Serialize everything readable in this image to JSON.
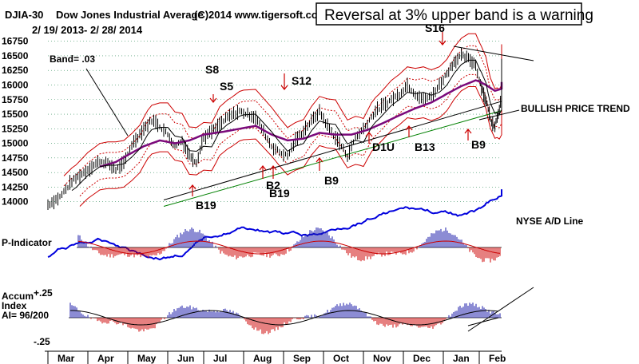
{
  "header": {
    "symbol": "DJIA-30",
    "name": "Dow Jones Industrial Average",
    "source": "(C)2014 www.tigersoft.com",
    "date_range": "2/ 19/ 2013- 2/ 28/ 2014"
  },
  "callout": "Reversal at 3% upper band is a warning",
  "band_label": "Band= .03",
  "trend_label": "BULLISH PRICE TREND",
  "ad_label": "NYSE A/D Line",
  "p_indicator_label": "P-Indicator",
  "accum": {
    "line1": "Accum",
    "line2": "Index",
    "line3": "AI= 96/200",
    "top_tick": "+.25",
    "bottom_tick": "-.25"
  },
  "colors": {
    "price": "#000000",
    "band": "#cc0000",
    "ma_long": "#7b0a7b",
    "ma_short": "#000000",
    "ad_line": "#0000dd",
    "trend_green": "#008000",
    "grid": "#2e8b57",
    "pos_hist": "#1a1aaa",
    "neg_hist": "#cc0000",
    "signal": "#cc0000"
  },
  "chart_data": {
    "type": "line",
    "ylim": [
      13900,
      16800
    ],
    "y_ticks": [
      14000,
      14250,
      14500,
      14750,
      15000,
      15250,
      15500,
      15750,
      16000,
      16250,
      16500,
      16750
    ],
    "months": [
      "Mar",
      "Apr",
      "May",
      "Jun",
      "Jul",
      "Aug",
      "Sep",
      "Oct",
      "Nov",
      "Dec",
      "Jan",
      "Feb"
    ],
    "series": [
      {
        "values": [
          [
            0,
            13950
          ],
          [
            0.3,
            14080
          ],
          [
            0.6,
            14350
          ],
          [
            1,
            14550
          ],
          [
            1.3,
            14700
          ],
          [
            1.5,
            14650
          ],
          [
            1.7,
            14550
          ],
          [
            1.9,
            14650
          ],
          [
            2.1,
            14980
          ],
          [
            2.4,
            15250
          ],
          [
            2.6,
            15400
          ],
          [
            2.8,
            15300
          ],
          [
            3,
            15150
          ],
          [
            3.2,
            14950
          ],
          [
            3.4,
            15050
          ],
          [
            3.6,
            14800
          ],
          [
            3.8,
            14680
          ],
          [
            4,
            15100
          ],
          [
            4.3,
            15250
          ],
          [
            4.6,
            15450
          ],
          [
            4.9,
            15550
          ],
          [
            5.1,
            15500
          ],
          [
            5.3,
            15450
          ],
          [
            5.5,
            15200
          ],
          [
            5.7,
            14950
          ],
          [
            5.9,
            14850
          ],
          [
            6.1,
            14780
          ],
          [
            6.3,
            15050
          ],
          [
            6.6,
            15300
          ],
          [
            6.9,
            15550
          ],
          [
            7.1,
            15300
          ],
          [
            7.3,
            15100
          ],
          [
            7.5,
            14900
          ],
          [
            7.6,
            14780
          ],
          [
            7.8,
            15100
          ],
          [
            8,
            15250
          ],
          [
            8.3,
            15550
          ],
          [
            8.6,
            15700
          ],
          [
            8.9,
            15850
          ],
          [
            9.1,
            16000
          ],
          [
            9.3,
            15850
          ],
          [
            9.5,
            15750
          ],
          [
            9.7,
            15800
          ],
          [
            9.9,
            16000
          ],
          [
            10.1,
            16200
          ],
          [
            10.3,
            16400
          ],
          [
            10.5,
            16500
          ],
          [
            10.7,
            16450
          ],
          [
            10.9,
            16350
          ],
          [
            11,
            16100
          ],
          [
            11.2,
            15850
          ],
          [
            11.4,
            15600
          ],
          [
            11.5,
            15400
          ],
          [
            11.7,
            15300
          ],
          [
            11.9,
            15600
          ],
          [
            12,
            15800
          ],
          [
            12.2,
            16000
          ],
          [
            12.4,
            16150
          ],
          [
            12.6,
            16250
          ],
          [
            12.8,
            16350
          ]
        ]
      },
      {
        "values": [
          [
            1.3,
            14600
          ],
          [
            1.7,
            14680
          ],
          [
            2,
            14800
          ],
          [
            2.4,
            14950
          ],
          [
            2.8,
            15050
          ],
          [
            3.2,
            15000
          ],
          [
            3.6,
            15050
          ],
          [
            4,
            15150
          ],
          [
            4.5,
            15200
          ],
          [
            4.9,
            15250
          ],
          [
            5.3,
            15300
          ],
          [
            5.7,
            15150
          ],
          [
            6.1,
            15050
          ],
          [
            6.5,
            15080
          ],
          [
            6.9,
            15180
          ],
          [
            7.3,
            15150
          ],
          [
            7.7,
            15150
          ],
          [
            8.1,
            15230
          ],
          [
            8.5,
            15350
          ],
          [
            8.9,
            15480
          ],
          [
            9.3,
            15600
          ],
          [
            9.7,
            15700
          ],
          [
            10.1,
            15850
          ],
          [
            10.5,
            15980
          ],
          [
            10.9,
            16080
          ],
          [
            11.3,
            16000
          ],
          [
            11.7,
            15900
          ],
          [
            12.1,
            15950
          ],
          [
            12.5,
            16050
          ]
        ]
      }
    ],
    "annotations": [
      "S8",
      "S5",
      "S12",
      "S16",
      "B19",
      "B2",
      "B19",
      "B9",
      "D1U",
      "B13",
      "B9"
    ],
    "indicators": [
      "P-Indicator",
      "Accum Index",
      "NYSE A/D Line"
    ]
  }
}
